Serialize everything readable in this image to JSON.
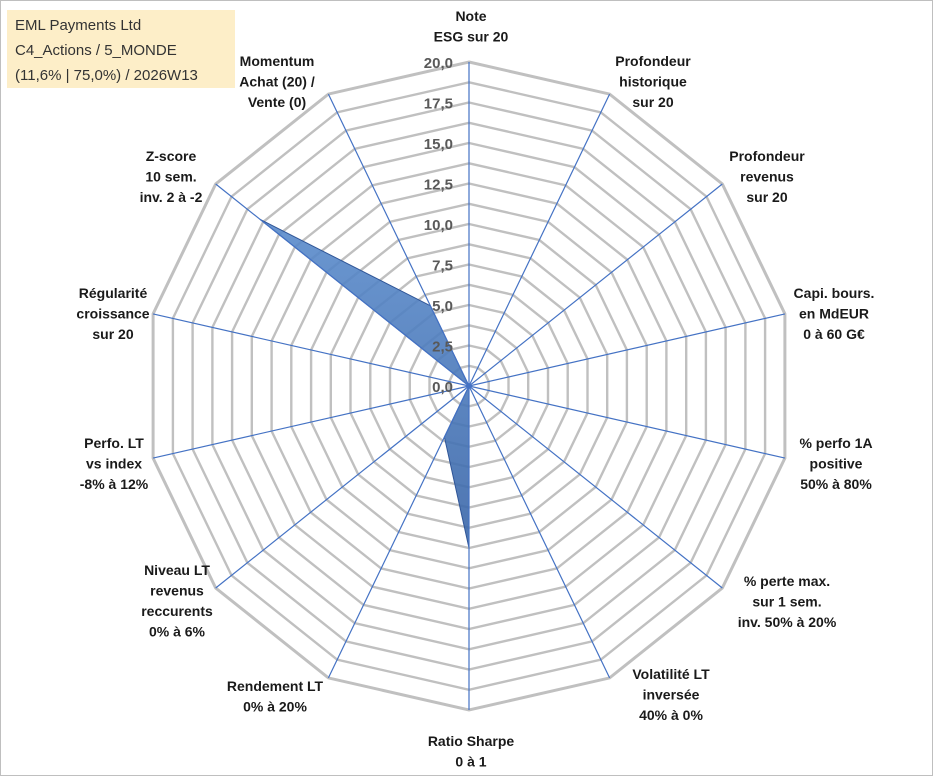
{
  "info": {
    "company": "EML Payments Ltd",
    "category": "C4_Actions / 5_MONDE",
    "details": "(11,6% | 75,0%) / 2026W13"
  },
  "chart_data": {
    "type": "radar",
    "rmax": 20,
    "ticks": [
      "0,0",
      "2,5",
      "5,0",
      "7,5",
      "10,0",
      "12,5",
      "15,0",
      "17,5",
      "20,0"
    ],
    "tick_values": [
      0,
      2.5,
      5,
      7.5,
      10,
      12.5,
      15,
      17.5,
      20
    ],
    "axes": [
      {
        "lines": [
          "Note",
          "ESG sur 20"
        ]
      },
      {
        "lines": [
          "Profondeur",
          "historique",
          "sur 20"
        ]
      },
      {
        "lines": [
          "Profondeur",
          "revenus",
          "sur 20"
        ]
      },
      {
        "lines": [
          "Capi. bours.",
          "en MdEUR",
          "0 à 60 G€"
        ]
      },
      {
        "lines": [
          "% perfo 1A",
          "positive",
          "50% à 80%"
        ]
      },
      {
        "lines": [
          "% perte max.",
          "sur 1 sem.",
          "inv. 50% à 20%"
        ]
      },
      {
        "lines": [
          "Volatilité LT",
          "inversée",
          "40% à 0%"
        ]
      },
      {
        "lines": [
          "Ratio Sharpe",
          "0 à 1"
        ]
      },
      {
        "lines": [
          "Rendement LT",
          "0% à 20%"
        ]
      },
      {
        "lines": [
          "Niveau LT",
          "revenus",
          "reccurents",
          "0% à 6%"
        ]
      },
      {
        "lines": [
          "Perfo. LT",
          "vs index",
          "-8% à 12%"
        ]
      },
      {
        "lines": [
          "Régularité",
          "croissance",
          "sur 20"
        ]
      },
      {
        "lines": [
          "Z-score",
          "10 sem.",
          "inv. 2 à -2"
        ]
      },
      {
        "lines": [
          "Momentum",
          "Achat (20) /",
          "Vente (0)"
        ]
      }
    ],
    "series": [
      {
        "values": [
          0,
          0,
          0,
          0,
          0,
          0,
          0,
          10,
          3.5,
          0,
          0,
          0,
          16.5,
          5.5
        ]
      }
    ],
    "colors": {
      "fill": "#4f81bd",
      "fill_dark": "#2f5597",
      "grid": "#c0c0c0",
      "axis": "#4472c4"
    }
  }
}
